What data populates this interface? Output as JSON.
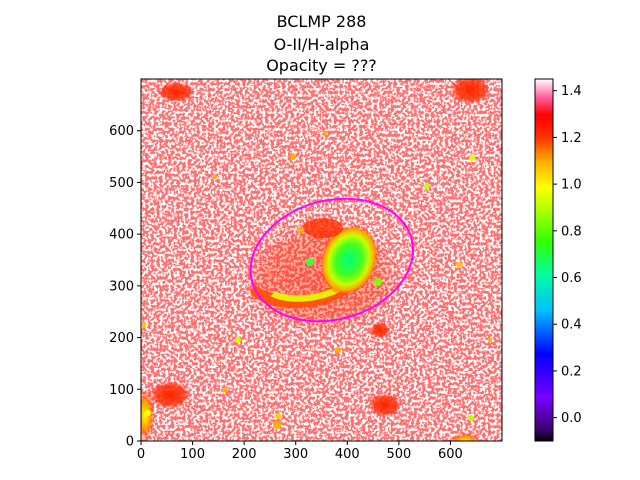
{
  "chart_data": {
    "type": "heatmap",
    "title_lines": [
      "BCLMP 288",
      "O-II/H-alpha",
      "Opacity = ???"
    ],
    "xlabel": "",
    "ylabel": "",
    "xlim": [
      0,
      700
    ],
    "ylim": [
      0,
      700
    ],
    "x_ticks": [
      0,
      100,
      200,
      300,
      400,
      500,
      600
    ],
    "y_ticks": [
      0,
      100,
      200,
      300,
      400,
      500,
      600
    ],
    "colorbar": {
      "colormap": "gist_ncar-like (black → purple → blue → cyan → green → yellow → orange → red → pink → white)",
      "range": [
        -0.1,
        1.45
      ],
      "ticks": [
        0.0,
        0.2,
        0.4,
        0.6,
        0.8,
        1.0,
        1.2,
        1.4
      ],
      "tick_labels": [
        "0.0",
        "0.2",
        "0.4",
        "0.6",
        "0.8",
        "1.0",
        "1.2",
        "1.4"
      ]
    },
    "ellipse": {
      "color": "#ff00ff",
      "center": [
        370,
        350
      ],
      "semi_major": 160,
      "semi_minor": 115,
      "angle_deg": 15
    },
    "features": [
      {
        "name": "central-nebula-core",
        "center": [
          350,
          320
        ],
        "value": 0.5
      },
      {
        "name": "nebula-arc",
        "center": [
          300,
          290
        ],
        "value": 0.8
      },
      {
        "name": "bright-source-bottom-right",
        "center": [
          635,
          5
        ],
        "value": 0.8
      },
      {
        "name": "bright-source-top-left",
        "center": [
          70,
          675
        ],
        "value": 0.95
      },
      {
        "name": "bright-source-bottom-left",
        "center": [
          10,
          50
        ],
        "value": 0.9
      },
      {
        "name": "bright-source-top-right",
        "center": [
          650,
          665
        ],
        "value": 1.0
      }
    ]
  }
}
